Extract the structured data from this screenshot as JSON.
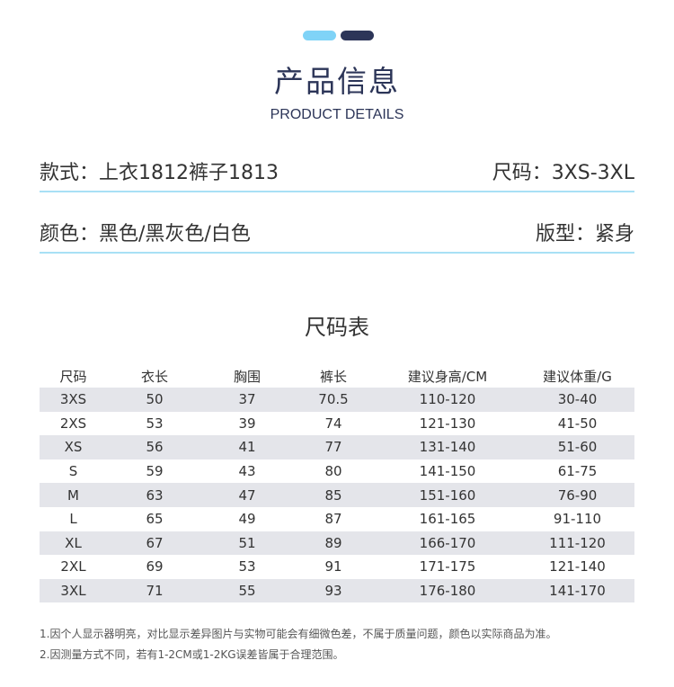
{
  "header": {
    "title": "产品信息",
    "subtitle": "PRODUCT DETAILS",
    "accent_colors": [
      "#7fd3f7",
      "#2c3558"
    ]
  },
  "info": [
    {
      "left": "款式：上衣1812裤子1813",
      "right": "尺码：3XS-3XL"
    },
    {
      "left": "颜色：黑色/黑灰色/白色",
      "right": "版型：紧身"
    }
  ],
  "size_table": {
    "title": "尺码表",
    "columns": [
      "尺码",
      "衣长",
      "胸围",
      "裤长",
      "建议身高/CM",
      "建议体重/G"
    ],
    "rows": [
      [
        "3XS",
        "50",
        "37",
        "70.5",
        "110-120",
        "30-40"
      ],
      [
        "2XS",
        "53",
        "39",
        "74",
        "121-130",
        "41-50"
      ],
      [
        "XS",
        "56",
        "41",
        "77",
        "131-140",
        "51-60"
      ],
      [
        "S",
        "59",
        "43",
        "80",
        "141-150",
        "61-75"
      ],
      [
        "M",
        "63",
        "47",
        "85",
        "151-160",
        "76-90"
      ],
      [
        "L",
        "65",
        "49",
        "87",
        "161-165",
        "91-110"
      ],
      [
        "XL",
        "67",
        "51",
        "89",
        "166-170",
        "111-120"
      ],
      [
        "2XL",
        "69",
        "53",
        "91",
        "171-175",
        "121-140"
      ],
      [
        "3XL",
        "71",
        "55",
        "93",
        "176-180",
        "141-170"
      ]
    ]
  },
  "notes": [
    "1.因个人显示器明亮，对比显示差异图片与实物可能会有细微色差，不属于质量问题，颜色以实际商品为准。",
    "2.因测量方式不同，若有1-2CM或1-2KG误差皆属于合理范围。"
  ]
}
